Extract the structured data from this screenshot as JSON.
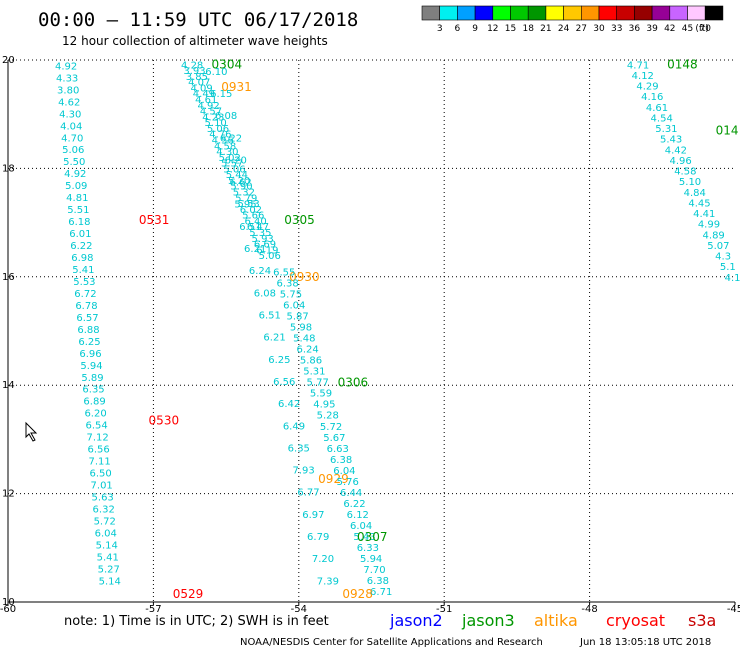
{
  "header": {
    "title": "00:00 – 11:59 UTC 06/17/2018",
    "subtitle": "12 hour collection of altimeter wave heights"
  },
  "legend": {
    "unit": "(ft)",
    "bins": [
      {
        "label": "3",
        "color": "#7f7f7f"
      },
      {
        "label": "6",
        "color": "#00f0f0"
      },
      {
        "label": "9",
        "color": "#00a0ff"
      },
      {
        "label": "12",
        "color": "#0000ff"
      },
      {
        "label": "15",
        "color": "#00ff00"
      },
      {
        "label": "18",
        "color": "#00c800"
      },
      {
        "label": "21",
        "color": "#009600"
      },
      {
        "label": "24",
        "color": "#ffff00"
      },
      {
        "label": "27",
        "color": "#ffc800"
      },
      {
        "label": "30",
        "color": "#ff9600"
      },
      {
        "label": "33",
        "color": "#ff0000"
      },
      {
        "label": "36",
        "color": "#c80000"
      },
      {
        "label": "39",
        "color": "#960000"
      },
      {
        "label": "42",
        "color": "#960096"
      },
      {
        "label": "45",
        "color": "#c864ff"
      },
      {
        "label": "70",
        "color": "#ffc8ff"
      },
      {
        "label": "",
        "color": "#000000"
      }
    ]
  },
  "footer": {
    "note": "note: 1) Time is in UTC; 2) SWH is in feet",
    "satellites": [
      {
        "name": "jason2",
        "color": "#0000ff"
      },
      {
        "name": "jason3",
        "color": "#009600"
      },
      {
        "name": "altika",
        "color": "#ff9600"
      },
      {
        "name": "cryosat",
        "color": "#ff0000"
      },
      {
        "name": "s3a",
        "color": "#c80000"
      }
    ],
    "credit": "NOAA/NESDIS Center for Satellite Applications and Research",
    "timestamp": "Jun 18 13:05:18 UTC 2018"
  },
  "chart_data": {
    "type": "scatter",
    "title": "00:00 – 11:59 UTC 06/17/2018",
    "subtitle": "12 hour collection of altimeter wave heights",
    "xlabel": "",
    "ylabel": "",
    "xlim": [
      -60,
      -45
    ],
    "ylim": [
      10,
      20
    ],
    "x_ticks": [
      "-60",
      "-57",
      "-54",
      "-51",
      "-48",
      "-45"
    ],
    "y_ticks": [
      "10",
      "12",
      "14",
      "16",
      "18",
      "20"
    ],
    "grid": true,
    "value_color": "#00c8d0",
    "tracks": [
      {
        "pass_labels": [
          {
            "text": "0531",
            "color": "#ff0000",
            "lon": -57.3,
            "lat": 17.05
          },
          {
            "text": "0530",
            "color": "#ff0000",
            "lon": -57.1,
            "lat": 13.35
          },
          {
            "text": "0529",
            "color": "#ff0000",
            "lon": -56.6,
            "lat": 10.15
          }
        ],
        "lon_start": -58.8,
        "lon_end": -57.9,
        "lat_start": 19.9,
        "lat_end": 10.4,
        "values": [
          "4.92",
          "4.33",
          "3.80",
          "4.62",
          "4.30",
          "4.04",
          "4.70",
          "5.06",
          "5.50",
          "4.92",
          "5.09",
          "4.81",
          "5.51",
          "6.18",
          "6.01",
          "6.22",
          "6.98",
          "5.41",
          "5.53",
          "6.72",
          "6.78",
          "6.57",
          "6.88",
          "6.25",
          "6.96",
          "5.94",
          "5.89",
          "6.35",
          "6.89",
          "6.20",
          "6.54",
          "7.12",
          "6.56",
          "7.11",
          "6.50",
          "7.01",
          "5.63",
          "6.32",
          "5.72",
          "6.04",
          "5.14",
          "5.41",
          "5.27",
          "5.14"
        ]
      },
      {
        "pass_labels": [
          {
            "text": "0304",
            "color": "#009600",
            "lon": -55.8,
            "lat": 19.92
          },
          {
            "text": "0305",
            "color": "#009600",
            "lon": -54.3,
            "lat": 17.05
          }
        ],
        "lon_start": -56.2,
        "lon_end": -54.6,
        "lat_start": 19.92,
        "lat_end": 16.4,
        "values": [
          "4.28",
          "3.93",
          "3.85",
          "4.07",
          "4.09",
          "4.49",
          "4.61",
          "4.92",
          "4.57",
          "4.23",
          "5.10",
          "5.06",
          "4.76",
          "4.56",
          "4.58",
          "4.30",
          "5.02",
          "5.57",
          "5.06",
          "5.44",
          "5.20",
          "5.90",
          "5.32",
          "5.79",
          "5.53",
          "6.02",
          "5.66",
          "6.40",
          "6.47",
          "5.35",
          "5.93",
          "6.69",
          "6.19",
          "5.06"
        ]
      },
      {
        "pass_labels": [
          {
            "text": "0931",
            "color": "#ff9600",
            "lon": -55.6,
            "lat": 19.5
          },
          {
            "text": "0930",
            "color": "#ff9600",
            "lon": -54.2,
            "lat": 16.0
          },
          {
            "text": "0929",
            "color": "#ff9600",
            "lon": -53.6,
            "lat": 12.27
          }
        ],
        "lon_start": -55.7,
        "lon_end": -53.4,
        "lat_start": 19.8,
        "lat_end": 10.4,
        "values": [
          "6.10",
          "6.15",
          "6.08",
          "6.22",
          "6.20",
          "6.62",
          "5.95",
          "6.51",
          "6.21",
          "6.24",
          "6.08",
          "6.51",
          "6.21",
          "6.25",
          "6.56",
          "6.42",
          "6.49",
          "6.35",
          "7.93",
          "6.77",
          "6.97",
          "6.79",
          "7.20",
          "7.39"
        ]
      },
      {
        "pass_labels": [
          {
            "text": "0306",
            "color": "#009600",
            "lon": -53.2,
            "lat": 14.05
          },
          {
            "text": "0307",
            "color": "#009600",
            "lon": -52.8,
            "lat": 11.2
          },
          {
            "text": "0928",
            "color": "#ff9600",
            "lon": -53.1,
            "lat": 10.15
          }
        ],
        "lon_start": -54.3,
        "lon_end": -52.3,
        "lat_start": 16.1,
        "lat_end": 10.2,
        "values": [
          "6.55",
          "6.38",
          "5.75",
          "6.04",
          "5.87",
          "5.98",
          "5.48",
          "6.24",
          "5.86",
          "5.31",
          "5.77",
          "5.59",
          "4.95",
          "5.28",
          "5.72",
          "5.67",
          "6.63",
          "6.38",
          "6.04",
          "5.76",
          "6.44",
          "6.22",
          "6.12",
          "6.04",
          "5.43",
          "6.33",
          "5.94",
          "7.70",
          "6.38",
          "6.71"
        ]
      },
      {
        "pass_labels": [
          {
            "text": "0148",
            "color": "#009600",
            "lon": -46.4,
            "lat": 19.92
          },
          {
            "text": "014",
            "color": "#009600",
            "lon": -45.4,
            "lat": 18.7
          }
        ],
        "lon_start": -47.0,
        "lon_end": -45.05,
        "lat_start": 19.92,
        "lat_end": 16.0,
        "values": [
          "4.71",
          "4.12",
          "4.29",
          "4.16",
          "4.61",
          "4.54",
          "5.31",
          "5.43",
          "4.42",
          "4.96",
          "4.58",
          "5.10",
          "4.84",
          "4.45",
          "4.41",
          "4.99",
          "4.89",
          "5.07",
          "4.3",
          "5.1",
          "4.1"
        ]
      }
    ]
  }
}
